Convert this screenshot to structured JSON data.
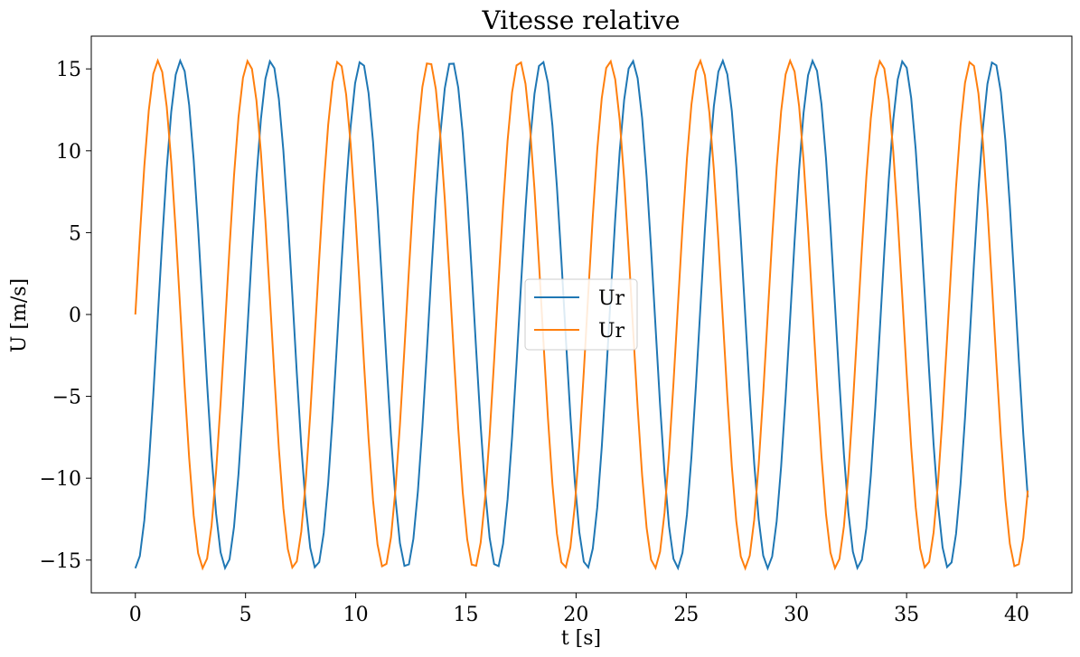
{
  "chart_data": {
    "type": "line",
    "title": "Vitesse relative",
    "xlabel": "t [s]",
    "ylabel": "U [m/s]",
    "xlim": [
      -2.0,
      42.5
    ],
    "ylim": [
      -17.0,
      17.0
    ],
    "xticks": [
      0,
      5,
      10,
      15,
      20,
      25,
      30,
      35,
      40
    ],
    "yticks": [
      -15,
      -10,
      -5,
      0,
      5,
      10,
      15
    ],
    "xtick_labels": [
      "0",
      "5",
      "10",
      "15",
      "20",
      "25",
      "30",
      "35",
      "40"
    ],
    "ytick_labels": [
      "−15",
      "−10",
      "−5",
      "0",
      "5",
      "10",
      "15"
    ],
    "grid": false,
    "legend_position": "center",
    "series": [
      {
        "name": "Ur",
        "color": "#1f77b4",
        "amplitude": 15.5,
        "period": 4.1,
        "t_start": 0.0,
        "t_end": 40.5,
        "points": 200,
        "shape": "-cos"
      },
      {
        "name": "Ur",
        "color": "#ff7f0e",
        "amplitude": 15.5,
        "period": 4.1,
        "t_start": 0.0,
        "t_end": 40.5,
        "points": 200,
        "shape": "sin"
      }
    ]
  }
}
